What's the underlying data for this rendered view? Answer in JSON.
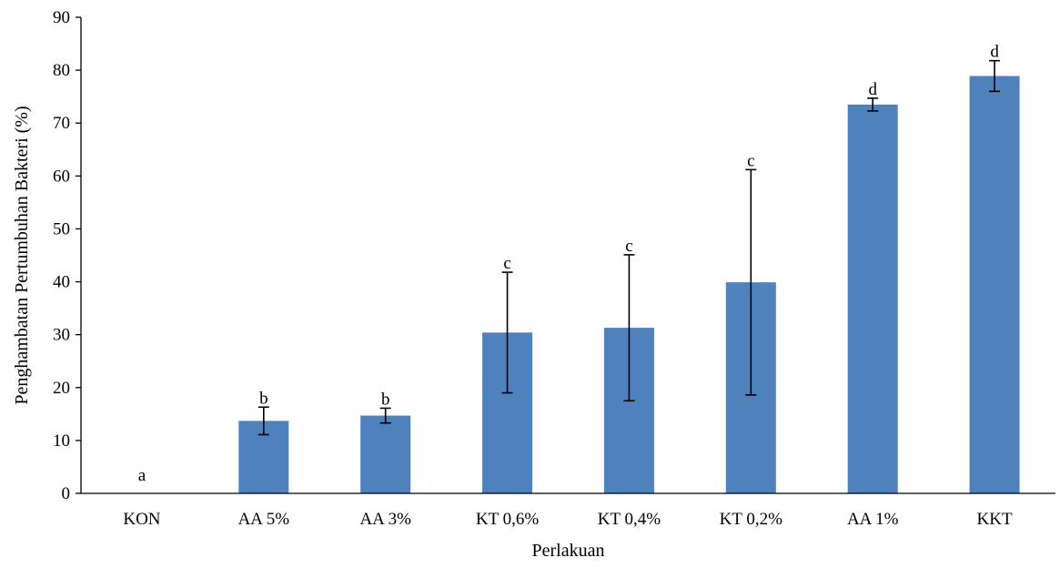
{
  "chart_data": {
    "type": "bar",
    "title": "",
    "xlabel": "Perlakuan",
    "ylabel": "Penghambatan  Pertumbuhan Bakteri (%)",
    "ylim": [
      0,
      90
    ],
    "yticks": [
      "0",
      "10",
      "20",
      "30",
      "40",
      "50",
      "60",
      "70",
      "80",
      "90"
    ],
    "grid": false,
    "legend": "none",
    "categories": [
      "KON",
      "AA 5%",
      "AA 3%",
      "KT 0,6%",
      "KT 0,4%",
      "KT 0,2%",
      "AA 1%",
      "KKT"
    ],
    "values": [
      0,
      13.7,
      14.7,
      30.4,
      31.3,
      39.9,
      73.5,
      78.9
    ],
    "error_low": [
      0,
      11.1,
      13.3,
      19.0,
      17.5,
      18.6,
      72.3,
      76.0
    ],
    "error_high": [
      0,
      16.3,
      16.1,
      41.8,
      45.1,
      61.2,
      74.7,
      81.8
    ],
    "significance_labels": [
      "a",
      "b",
      "b",
      "c",
      "c",
      "c",
      "d",
      "d"
    ],
    "colors": {
      "bar": "#4f81bd",
      "axis": "#000000"
    }
  }
}
